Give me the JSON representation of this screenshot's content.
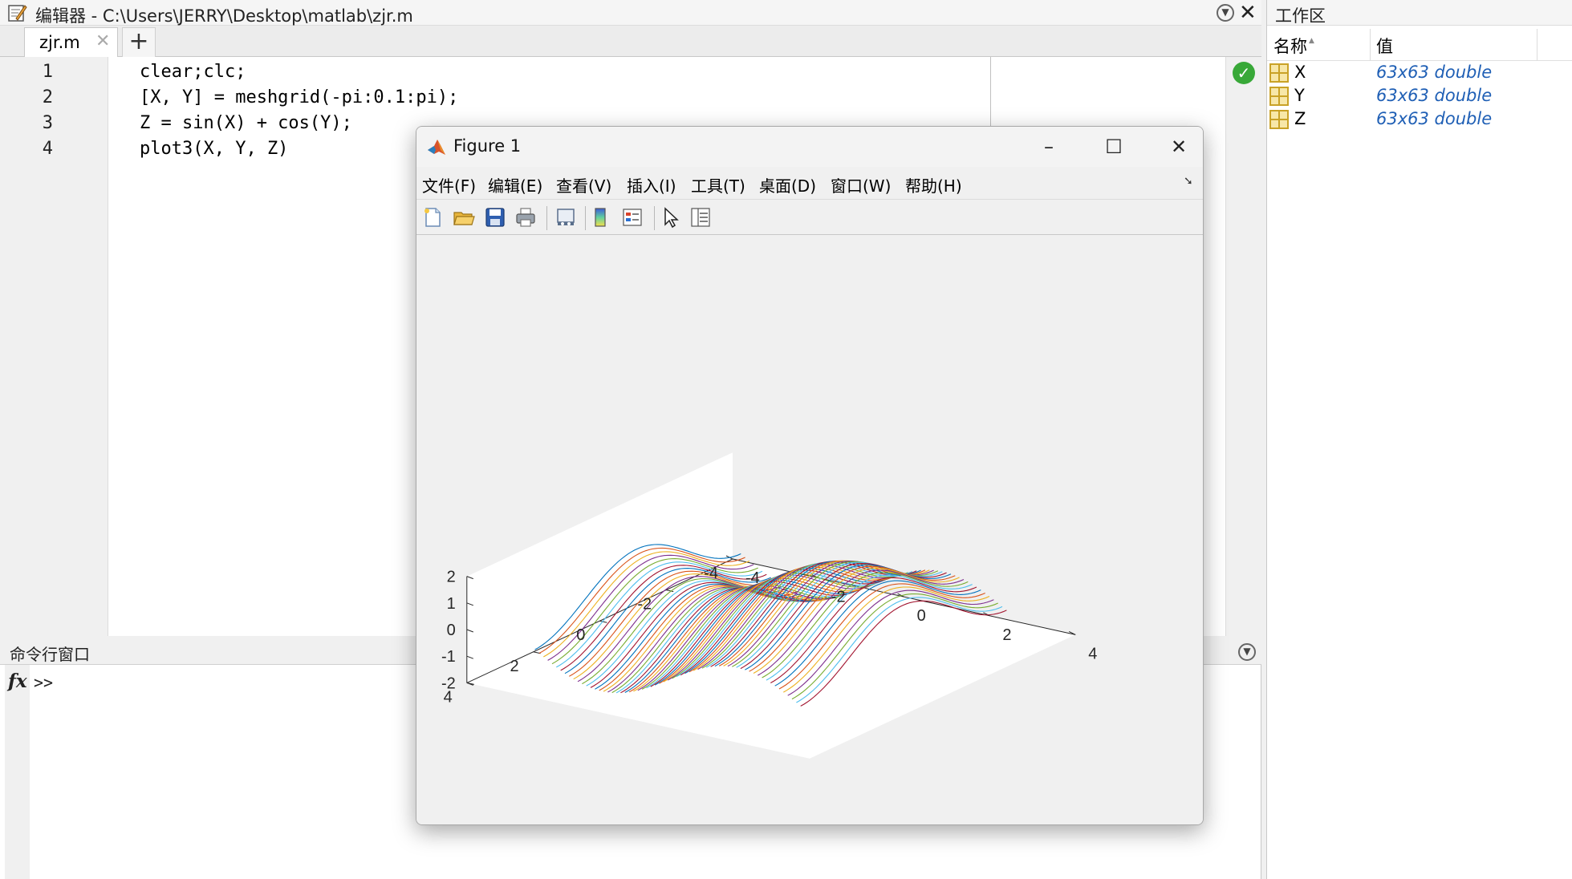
{
  "editor": {
    "title": "编辑器 - C:\\Users\\JERRY\\Desktop\\matlab\\zjr.m",
    "tab_label": "zjr.m",
    "tab_close": "✕",
    "tab_add": "+",
    "lines": [
      {
        "num": "1",
        "code": "clear;clc;"
      },
      {
        "num": "2",
        "code": "[X, Y] = meshgrid(-pi:0.1:pi);"
      },
      {
        "num": "3",
        "code": "Z = sin(X) + cos(Y);"
      },
      {
        "num": "4",
        "code": "plot3(X, Y, Z)"
      }
    ]
  },
  "command_window": {
    "title": "命令行窗口",
    "fx": "fx",
    "prompt": ">>"
  },
  "workspace": {
    "title": "工作区",
    "col_name": "名称",
    "col_value": "值",
    "sort_glyph": "▲",
    "variables": [
      {
        "name": "X",
        "value": "63x63 double"
      },
      {
        "name": "Y",
        "value": "63x63 double"
      },
      {
        "name": "Z",
        "value": "63x63 double"
      }
    ]
  },
  "figure": {
    "title": "Figure 1",
    "menus": [
      "文件(F)",
      "编辑(E)",
      "查看(V)",
      "插入(I)",
      "工具(T)",
      "桌面(D)",
      "窗口(W)",
      "帮助(H)"
    ],
    "toolbar_icons": [
      "new-figure-icon",
      "open-file-icon",
      "save-icon",
      "print-icon",
      "link-plot-icon",
      "colorbar-icon",
      "legend-icon",
      "edit-plot-arrow-icon",
      "property-inspector-icon"
    ]
  },
  "chart_data": {
    "type": "line",
    "plot_kind": "plot3",
    "function": "Z = sin(X) + cos(Y)",
    "x_range": [
      -3.1416,
      3.1416
    ],
    "y_range": [
      -3.1416,
      3.1416
    ],
    "step": 0.1,
    "num_lines": 63,
    "xlim": [
      -4,
      4
    ],
    "ylim": [
      -4,
      4
    ],
    "zlim": [
      -2,
      2
    ],
    "xticks": [
      "-4",
      "-2",
      "0",
      "2",
      "4"
    ],
    "yticks": [
      "-4",
      "-2",
      "0",
      "2",
      "4"
    ],
    "zticks": [
      "-2",
      "-1",
      "0",
      "1",
      "2"
    ],
    "color_order": [
      "#0072BD",
      "#D95319",
      "#EDB120",
      "#7E2F8E",
      "#77AC30",
      "#4DBEEE",
      "#A2142F"
    ],
    "title": "",
    "xlabel": "",
    "ylabel": "",
    "zlabel": ""
  }
}
